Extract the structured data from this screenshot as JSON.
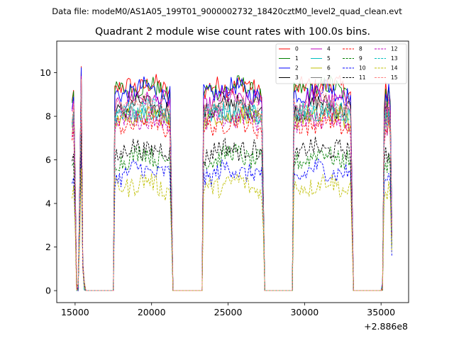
{
  "header": {
    "suptitle": "Data file: modeM0/AS1A05_199T01_9000002732_18420cztM0_level2_quad_clean.evt"
  },
  "chart_data": {
    "type": "line",
    "title": "Quadrant 2 module wise count rates with 100.0s bins.",
    "xlabel": "",
    "ylabel": "",
    "x_offset_label": "+2.886e8",
    "xlim": [
      13800,
      36800
    ],
    "ylim": [
      -0.55,
      11.45
    ],
    "xticks": [
      15000,
      20000,
      25000,
      30000,
      35000
    ],
    "xtick_labels": [
      "15000",
      "20000",
      "25000",
      "30000",
      "35000"
    ],
    "yticks": [
      0,
      2,
      4,
      6,
      8,
      10
    ],
    "ytick_labels": [
      "0",
      "2",
      "4",
      "6",
      "8",
      "10"
    ],
    "legend_position": "upper-right",
    "legend_columns": 4,
    "segments": [
      {
        "start": 14800,
        "end": 15600,
        "kind": "orbit-edge"
      },
      {
        "start": 17600,
        "end": 21300,
        "kind": "plateau"
      },
      {
        "start": 23400,
        "end": 27300,
        "kind": "plateau"
      },
      {
        "start": 29300,
        "end": 33100,
        "kind": "plateau"
      },
      {
        "start": 35100,
        "end": 35700,
        "kind": "orbit-edge"
      }
    ],
    "series": [
      {
        "name": "0",
        "color": "#ff0000",
        "style": "solid",
        "level": 9.1
      },
      {
        "name": "1",
        "color": "#008000",
        "style": "solid",
        "level": 9.0
      },
      {
        "name": "2",
        "color": "#0000ff",
        "style": "solid",
        "level": 8.9
      },
      {
        "name": "3",
        "color": "#000000",
        "style": "solid",
        "level": 8.2
      },
      {
        "name": "4",
        "color": "#bf00bf",
        "style": "solid",
        "level": 8.5
      },
      {
        "name": "5",
        "color": "#00bfbf",
        "style": "solid",
        "level": 7.9
      },
      {
        "name": "6",
        "color": "#bfbf00",
        "style": "solid",
        "level": 7.7
      },
      {
        "name": "7",
        "color": "#808080",
        "style": "solid",
        "level": 8.0
      },
      {
        "name": "8",
        "color": "#ff0000",
        "style": "dashed",
        "level": 7.4
      },
      {
        "name": "9",
        "color": "#008000",
        "style": "dashed",
        "level": 5.9
      },
      {
        "name": "10",
        "color": "#0000ff",
        "style": "dashed",
        "level": 5.2
      },
      {
        "name": "11",
        "color": "#000000",
        "style": "dashed",
        "level": 6.2
      },
      {
        "name": "12",
        "color": "#bf00bf",
        "style": "dashed",
        "level": 7.6
      },
      {
        "name": "13",
        "color": "#00bfbf",
        "style": "dashed",
        "level": 8.0
      },
      {
        "name": "14",
        "color": "#bfbf00",
        "style": "dashed",
        "level": 4.6
      },
      {
        "name": "15",
        "color": "#ff7f7f",
        "style": "dashed",
        "level": 8.3
      }
    ]
  }
}
